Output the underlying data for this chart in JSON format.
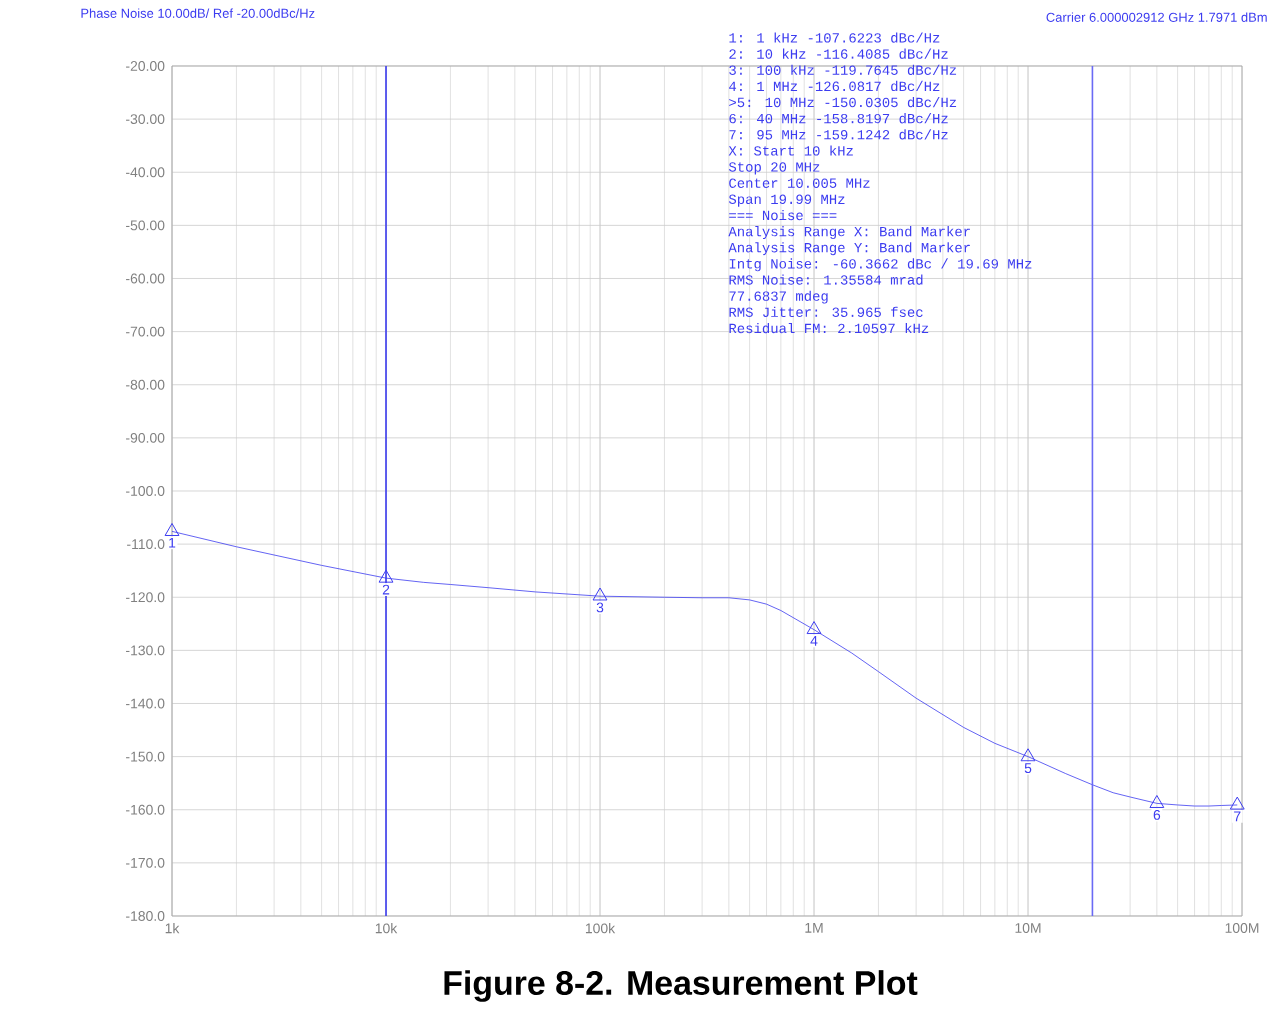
{
  "chart_data": {
    "type": "line",
    "title": "Figure 8-2. Measurement Plot",
    "annotations": [
      "Phase Noise 10.00dB/ Ref -20.00dBc/Hz",
      "Carrier 6.000002912 GHz 1.7971 dBm",
      "1: 1 kHz -107.6223 dBc/Hz",
      "2: 10 kHz -116.4085 dBc/Hz",
      "3: 100 kHz -119.7645 dBc/Hz",
      "4: 1 MHz -126.0817 dBc/Hz",
      ">5: 10 MHz -150.0305 dBc/Hz",
      "6: 40 MHz -158.8197 dBc/Hz",
      "7: 95 MHz -159.1242 dBc/Hz",
      "X: Start 10 kHz",
      "Stop 20 MHz",
      "Center 10.005 MHz",
      "Span 19.99 MHz",
      "=== Noise ===",
      "Analysis Range X: Band Marker",
      "Analysis Range Y: Band Marker",
      "Intg Noise: -60.3662 dBc / 19.69 MHz",
      "RMS Noise: 1.35584 mrad",
      "77.6837 mdeg",
      "RMS Jitter: 35.965 fsec",
      "Residual FM: 2.10597 kHz",
      {
        "text": "1",
        "x": 1000,
        "y": -107.6223
      },
      {
        "text": "2",
        "x": 10000,
        "y": -116.4085
      },
      {
        "text": "3",
        "x": 100000,
        "y": -119.7645
      },
      {
        "text": "4",
        "x": 1000000,
        "y": -126.0817
      },
      {
        "text": "5",
        "x": 10000000,
        "y": -150.0305
      },
      {
        "text": "6",
        "x": 40000000,
        "y": -158.8197
      },
      {
        "text": "7",
        "x": 95000000,
        "y": -159.1242
      }
    ],
    "x": [
      1000,
      2000,
      5000,
      10000,
      15000,
      20000,
      30000,
      50000,
      100000,
      200000,
      300000,
      400000,
      500000,
      600000,
      700000,
      1000000,
      1500000,
      2000000,
      3000000,
      5000000,
      7000000,
      10000000,
      15000000,
      20000000,
      25000000,
      30000000,
      40000000,
      50000000,
      60000000,
      70000000,
      80000000,
      95000000
    ],
    "series": [
      {
        "color": "#3c3cf0",
        "values": [
          -107.6,
          -110.5,
          -114,
          -116.4,
          -117.2,
          -117.6,
          -118.2,
          -119,
          -119.8,
          -120,
          -120.1,
          -120.1,
          -120.5,
          -121.3,
          -122.5,
          -126.1,
          -130.5,
          -134,
          -139,
          -144.5,
          -147.5,
          -150,
          -153.2,
          -155.3,
          -156.8,
          -157.6,
          -158.8,
          -159.1,
          -159.3,
          -159.3,
          -159.2,
          -159.1
        ]
      }
    ],
    "log": "x",
    "xlim": [
      1000,
      100000000
    ],
    "xticks": [
      {
        "value": 1000,
        "label": "1k"
      },
      {
        "value": 10000,
        "label": "10k"
      },
      {
        "value": 100000,
        "label": "100k"
      },
      {
        "value": 1000000,
        "label": "1M"
      },
      {
        "value": 10000000,
        "label": "10M"
      },
      {
        "value": 100000000,
        "label": "100M"
      }
    ],
    "ylim": [
      -180,
      -20
    ],
    "yticks": [
      {
        "value": -20,
        "label": "-20.00"
      },
      {
        "value": -30,
        "label": "-30.00"
      },
      {
        "value": -40,
        "label": "-40.00"
      },
      {
        "value": -50,
        "label": "-50.00"
      },
      {
        "value": -60,
        "label": "-60.00"
      },
      {
        "value": -70,
        "label": "-70.00"
      },
      {
        "value": -80,
        "label": "-80.00"
      },
      {
        "value": -90,
        "label": "-90.00"
      },
      {
        "value": -100,
        "label": "-100.0"
      },
      {
        "value": -110,
        "label": "-110.0"
      },
      {
        "value": -120,
        "label": "-120.0"
      },
      {
        "value": -130,
        "label": "-130.0"
      },
      {
        "value": -140,
        "label": "-140.0"
      },
      {
        "value": -150,
        "label": "-150.0"
      },
      {
        "value": -160,
        "label": "-160.0"
      },
      {
        "value": -170,
        "label": "-170.0"
      },
      {
        "value": -180,
        "label": "-180.0"
      }
    ],
    "ref_lines": [
      {
        "axis": "x",
        "value": 10000,
        "color": "#3c3cf0"
      },
      {
        "axis": "x",
        "value": 20000000,
        "color": "#6a6af5"
      }
    ],
    "grid": true
  }
}
